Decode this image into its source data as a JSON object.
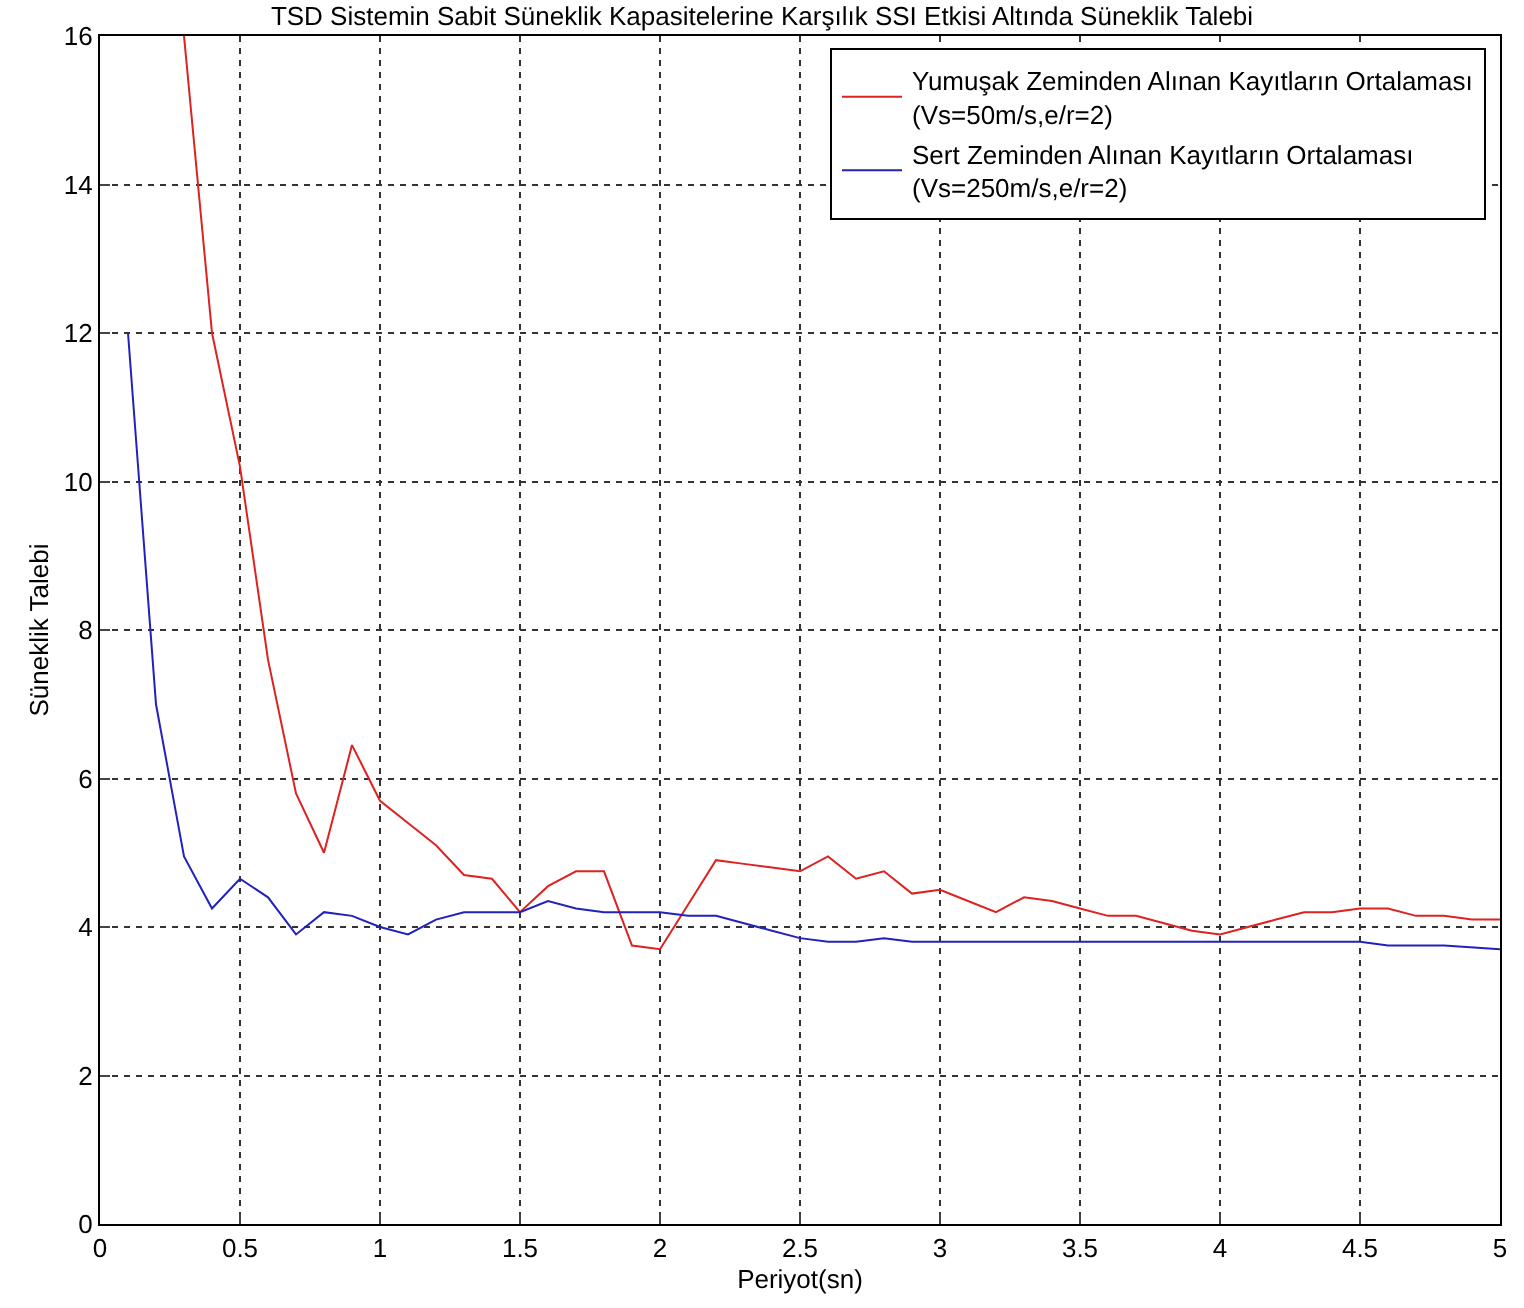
{
  "chart_data": {
    "type": "line",
    "title": "TSD Sistemin Sabit Süneklik Kapasitelerine Karşılık SSI Etkisi Altında Süneklik Talebi",
    "xlabel": "Periyot(sn)",
    "ylabel": "Süneklik Talebi",
    "xlim": [
      0,
      5
    ],
    "xticks": [
      0,
      0.5,
      1,
      1.5,
      2,
      2.5,
      3,
      3.5,
      4,
      4.5,
      5
    ],
    "ylim": [
      0,
      16
    ],
    "yticks": [
      0,
      2,
      4,
      6,
      8,
      10,
      12,
      14,
      16
    ],
    "grid": true,
    "legend": "top right",
    "line_style": "solid",
    "marker": "none",
    "series": [
      {
        "name": "Yumuşak Zeminden Alınan Kayıtların Ortalaması\n(Vs=50m/s,e/r=2)",
        "color": "#dd2222",
        "x": [
          0.3,
          0.4,
          0.5,
          0.6,
          0.7,
          0.8,
          0.9,
          1.0,
          1.1,
          1.2,
          1.3,
          1.4,
          1.5,
          1.6,
          1.7,
          1.8,
          1.9,
          2.0,
          2.1,
          2.2,
          2.3,
          2.4,
          2.5,
          2.6,
          2.7,
          2.8,
          2.9,
          3.0,
          3.1,
          3.2,
          3.3,
          3.4,
          3.5,
          3.6,
          3.7,
          3.8,
          3.9,
          4.0,
          4.1,
          4.2,
          4.3,
          4.4,
          4.5,
          4.6,
          4.7,
          4.8,
          4.9,
          5.0
        ],
        "values": [
          16,
          12,
          10.2,
          7.6,
          5.8,
          5.0,
          6.45,
          5.7,
          5.4,
          5.1,
          4.7,
          4.65,
          4.2,
          4.55,
          4.75,
          4.75,
          3.75,
          3.7,
          4.3,
          4.9,
          4.85,
          4.8,
          4.75,
          4.95,
          4.65,
          4.75,
          4.45,
          4.5,
          4.35,
          4.2,
          4.4,
          4.35,
          4.25,
          4.15,
          4.15,
          4.05,
          3.95,
          3.9,
          4.0,
          4.1,
          4.2,
          4.2,
          4.25,
          4.25,
          4.15,
          4.15,
          4.1,
          4.1
        ]
      },
      {
        "name": "Sert Zeminden Alınan Kayıtların Ortalaması\n(Vs=250m/s,e/r=2)",
        "color": "#2222bb",
        "x": [
          0.1,
          0.2,
          0.3,
          0.4,
          0.5,
          0.6,
          0.7,
          0.8,
          0.9,
          1.0,
          1.1,
          1.2,
          1.3,
          1.4,
          1.5,
          1.6,
          1.7,
          1.8,
          1.9,
          2.0,
          2.1,
          2.2,
          2.3,
          2.4,
          2.5,
          2.6,
          2.7,
          2.8,
          2.9,
          3.0,
          3.5,
          4.0,
          4.5,
          4.6,
          4.8,
          5.0
        ],
        "values": [
          12,
          7,
          4.95,
          4.25,
          4.65,
          4.4,
          3.9,
          4.2,
          4.15,
          4.0,
          3.9,
          4.1,
          4.2,
          4.2,
          4.2,
          4.35,
          4.25,
          4.2,
          4.2,
          4.2,
          4.15,
          4.15,
          4.05,
          3.95,
          3.85,
          3.8,
          3.8,
          3.85,
          3.8,
          3.8,
          3.8,
          3.8,
          3.8,
          3.75,
          3.75,
          3.7
        ]
      }
    ]
  }
}
